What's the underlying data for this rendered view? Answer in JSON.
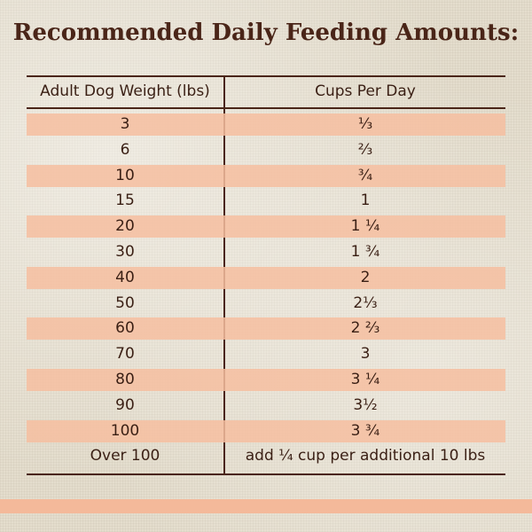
{
  "title": "Recommended Daily Feeding Amounts:",
  "table": {
    "header": [
      "Adult Dog Weight (lbs)",
      "Cups Per Day"
    ],
    "rows": [
      [
        "3",
        "⅓"
      ],
      [
        "6",
        "⅔"
      ],
      [
        "10",
        "¾"
      ],
      [
        "15",
        "1"
      ],
      [
        "20",
        "1 ¼"
      ],
      [
        "30",
        "1 ¾"
      ],
      [
        "40",
        "2"
      ],
      [
        "50",
        "2⅓"
      ],
      [
        "60",
        "2 ⅔"
      ],
      [
        "70",
        "3"
      ],
      [
        "80",
        "3 ¼"
      ],
      [
        "90",
        "3½"
      ],
      [
        "100",
        "3 ¾"
      ],
      [
        "Over 100",
        "add ¼ cup per additional 10 lbs"
      ]
    ]
  }
}
